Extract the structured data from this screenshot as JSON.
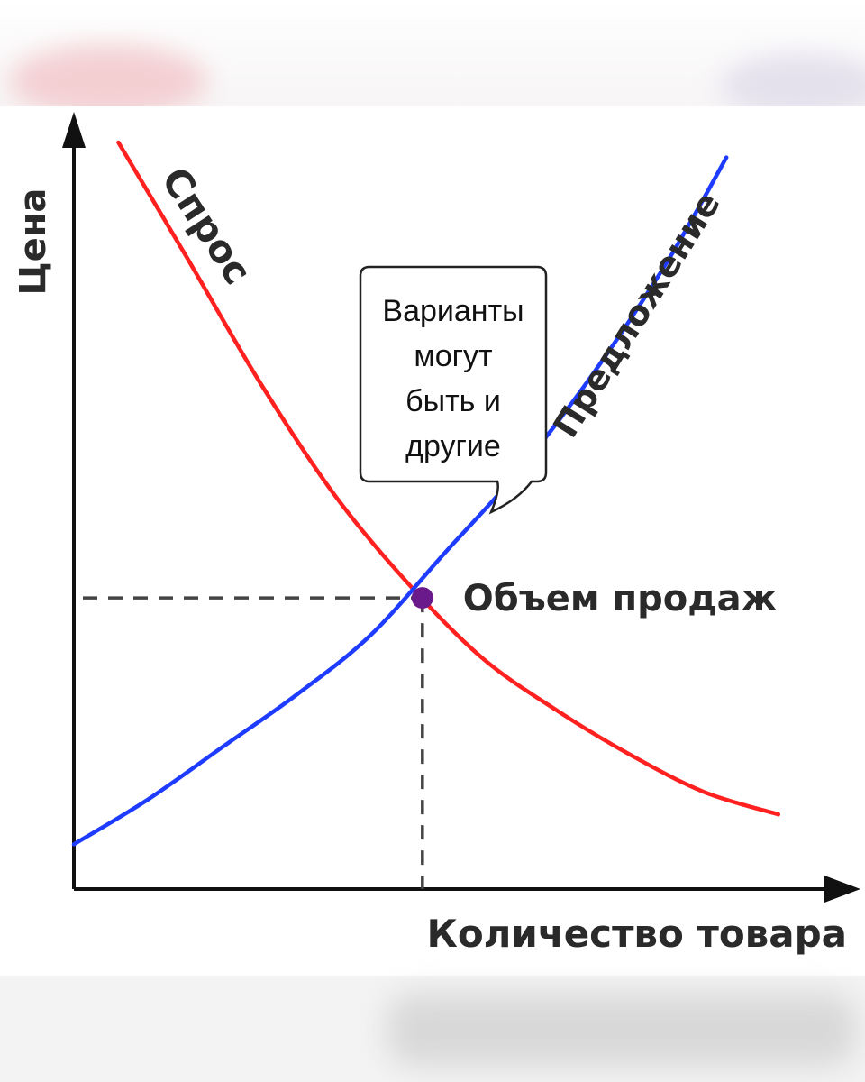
{
  "chart_data": {
    "type": "line",
    "title": "",
    "xlabel": "Количество товара",
    "ylabel": "Цена",
    "xlim": [
      0,
      100
    ],
    "ylim": [
      0,
      100
    ],
    "grid": false,
    "series": [
      {
        "name": "Спрос",
        "color": "#ff2020",
        "points": [
          [
            6,
            100
          ],
          [
            15,
            85
          ],
          [
            25,
            68
          ],
          [
            35,
            53
          ],
          [
            45,
            41
          ],
          [
            55,
            31
          ],
          [
            65,
            24
          ],
          [
            75,
            18
          ],
          [
            85,
            13
          ],
          [
            95,
            10
          ]
        ]
      },
      {
        "name": "Предложение",
        "color": "#1e3cff",
        "points": [
          [
            0,
            6
          ],
          [
            10,
            12
          ],
          [
            20,
            19
          ],
          [
            30,
            26
          ],
          [
            40,
            34
          ],
          [
            50,
            45
          ],
          [
            60,
            56
          ],
          [
            70,
            69
          ],
          [
            80,
            84
          ],
          [
            88,
            98
          ]
        ]
      }
    ],
    "equilibrium": {
      "x": 47,
      "y": 39,
      "label": "Объем продаж",
      "color": "#6a1a8a"
    },
    "callout": "Варианты могут быть и другие"
  }
}
